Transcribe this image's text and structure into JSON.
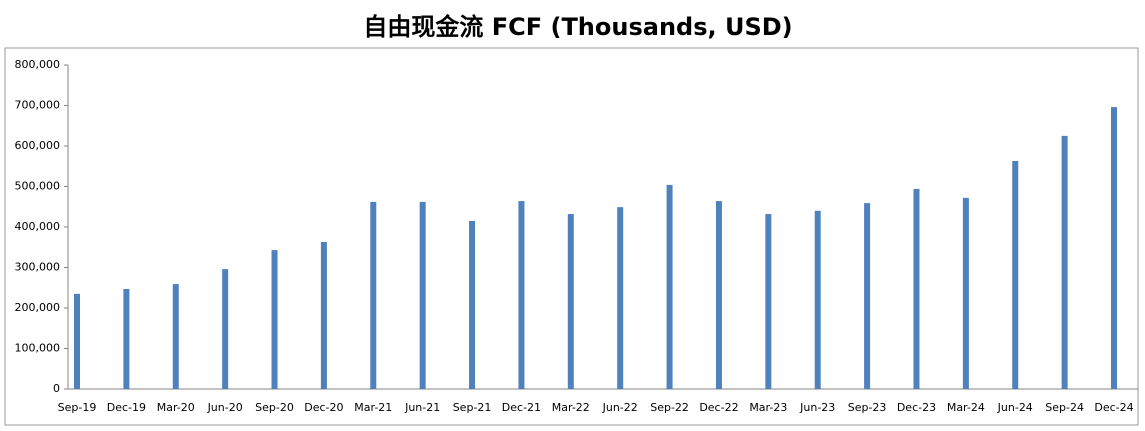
{
  "chart_data": {
    "type": "bar",
    "title": "自由现金流 FCF (Thousands, USD)",
    "categories": [
      "Sep-19",
      "Dec-19",
      "Mar-20",
      "Jun-20",
      "Sep-20",
      "Dec-20",
      "Mar-21",
      "Jun-21",
      "Sep-21",
      "Dec-21",
      "Mar-22",
      "Jun-22",
      "Sep-22",
      "Dec-22",
      "Mar-23",
      "Jun-23",
      "Sep-23",
      "Dec-23",
      "Mar-24",
      "Jun-24",
      "Sep-24",
      "Dec-24"
    ],
    "values": [
      235000,
      247000,
      259000,
      296000,
      343000,
      363000,
      462000,
      462000,
      415000,
      464000,
      432000,
      449000,
      504000,
      464000,
      432000,
      440000,
      459000,
      494000,
      472000,
      563000,
      625000,
      696000
    ],
    "color": "#4f81bd",
    "ylim": [
      0,
      800000
    ],
    "yticks": [
      0,
      {
        "value": 100000,
        "label": "100,000"
      },
      {
        "value": 200000,
        "label": "200,000"
      },
      {
        "value": 300000,
        "label": "300,000"
      },
      {
        "value": 400000,
        "label": "400,000"
      },
      {
        "value": 500000,
        "label": "500,000"
      },
      {
        "value": 600000,
        "label": "600,000"
      },
      {
        "value": 700000,
        "label": "700,000"
      },
      {
        "value": 800000,
        "label": "800,000"
      }
    ],
    "grid": false
  }
}
